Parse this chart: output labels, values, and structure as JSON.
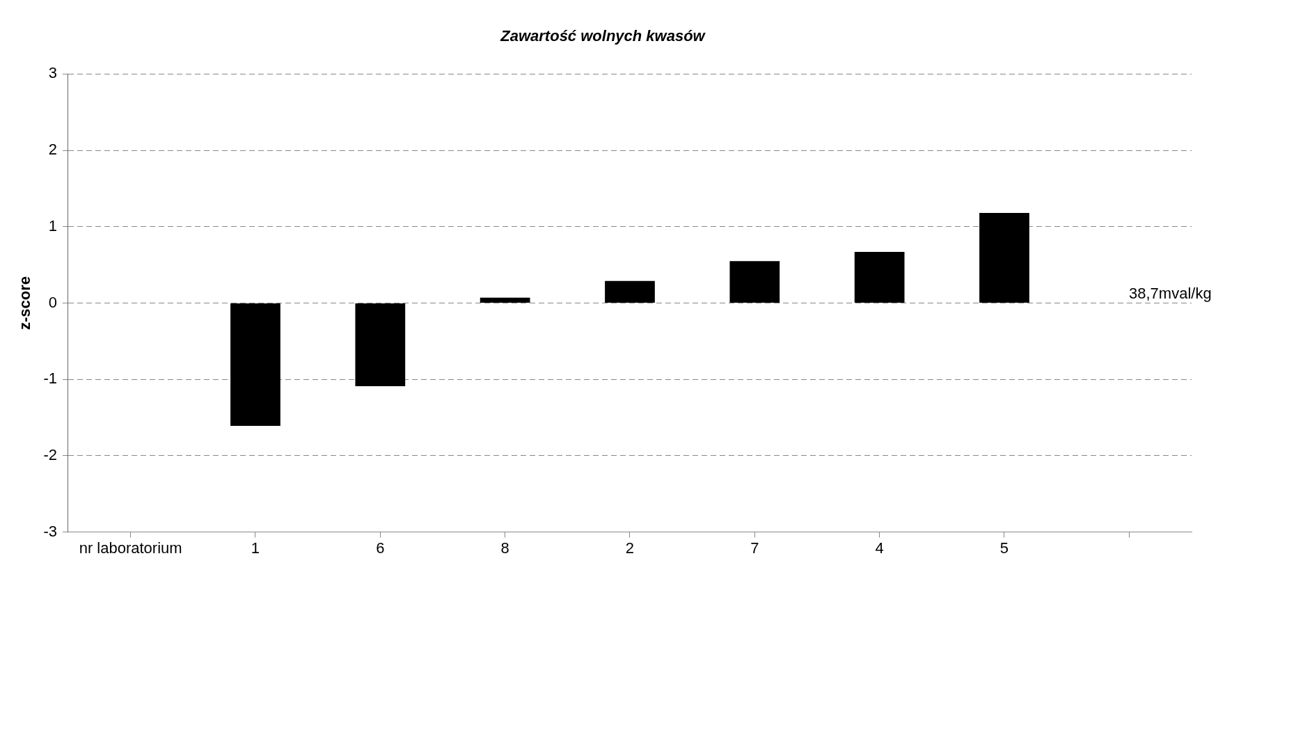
{
  "chart_data": {
    "type": "bar",
    "title": "Zawartość wolnych kwasów",
    "ylabel": "z-score",
    "categories": [
      "nr laboratorium",
      "1",
      "6",
      "8",
      "2",
      "7",
      "4",
      "5",
      null
    ],
    "values": [
      null,
      -1.61,
      -1.09,
      0.07,
      0.29,
      0.55,
      0.67,
      1.18,
      null
    ],
    "color": "#000000",
    "ylim": [
      -3,
      3
    ],
    "yticks": [
      -3,
      -2,
      -1,
      0,
      1,
      2,
      3
    ],
    "grid": "y",
    "legend": false,
    "annotations": [
      "38,7mval/kg"
    ]
  }
}
